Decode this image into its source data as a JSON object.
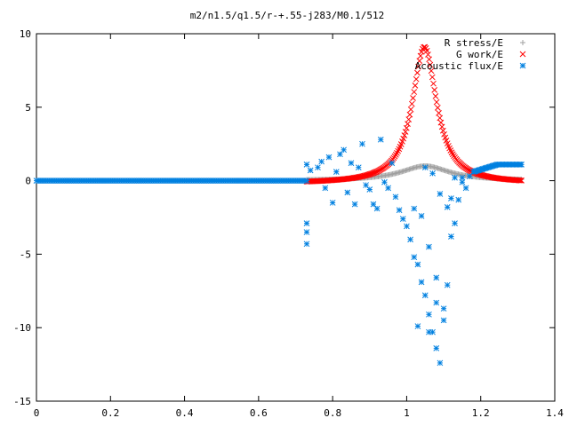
{
  "chart_data": {
    "type": "scatter",
    "title": "m2/n1.5/q1.5/r-+.55-j283/M0.1/512",
    "xlabel": "",
    "ylabel": "",
    "xlim": [
      0,
      1.4
    ],
    "ylim": [
      -15,
      10
    ],
    "x_ticks": [
      "0",
      "0.2",
      "0.4",
      "0.6",
      "0.8",
      "1",
      "1.2",
      "1.4"
    ],
    "y_ticks": [
      "10",
      "5",
      "0",
      "-5",
      "-10",
      "-15"
    ],
    "grid": false,
    "legend_position": "top-right",
    "series": [
      {
        "name": "R stress/E",
        "marker": "plus",
        "color": "#a0a0a0",
        "x_range": [
          0.73,
          1.31
        ],
        "peak_x": 1.05,
        "peak_y": 1.0,
        "width": 0.08,
        "x": [
          0.73,
          0.76,
          0.79,
          0.82,
          0.85,
          0.88,
          0.91,
          0.94,
          0.97,
          1.0,
          1.02,
          1.04,
          1.05,
          1.06,
          1.08,
          1.1,
          1.13,
          1.16,
          1.19,
          1.22,
          1.25,
          1.28,
          1.31
        ],
        "y": [
          0.05,
          0.06,
          0.08,
          0.1,
          0.12,
          0.15,
          0.2,
          0.3,
          0.45,
          0.7,
          0.85,
          0.97,
          1.0,
          0.95,
          0.8,
          0.6,
          0.35,
          0.2,
          0.12,
          0.08,
          0.05,
          0.04,
          0.03
        ]
      },
      {
        "name": "G work/E",
        "marker": "cross",
        "color": "#ff0000",
        "x_range": [
          0.73,
          1.31
        ],
        "peak_x": 1.048,
        "peak_y": 9.3,
        "width": 0.04,
        "x": [
          0.73,
          0.78,
          0.83,
          0.88,
          0.92,
          0.96,
          0.99,
          1.01,
          1.03,
          1.04,
          1.048,
          1.06,
          1.07,
          1.09,
          1.11,
          1.14,
          1.18,
          1.22,
          1.26,
          1.31
        ],
        "y": [
          -0.2,
          0.0,
          0.2,
          0.5,
          0.9,
          1.7,
          3.0,
          4.8,
          7.5,
          8.8,
          9.3,
          8.6,
          7.4,
          4.6,
          2.6,
          1.0,
          0.3,
          0.0,
          -0.1,
          -0.1
        ]
      },
      {
        "name": "Acoustic flux/E",
        "marker": "star",
        "color": "#0080e0",
        "left_baseline": {
          "x_range": [
            0,
            0.73
          ],
          "y": 0.0
        },
        "right_tail": {
          "x_range": [
            1.18,
            1.31
          ],
          "y_start": 0.6,
          "y_end": 1.1
        },
        "scatter": [
          [
            0.73,
            1.1
          ],
          [
            0.73,
            -2.9
          ],
          [
            0.73,
            -3.5
          ],
          [
            0.73,
            -4.3
          ],
          [
            0.74,
            0.7
          ],
          [
            0.76,
            0.9
          ],
          [
            0.77,
            1.3
          ],
          [
            0.78,
            -0.5
          ],
          [
            0.79,
            1.6
          ],
          [
            0.8,
            -1.5
          ],
          [
            0.81,
            0.6
          ],
          [
            0.82,
            1.8
          ],
          [
            0.83,
            2.1
          ],
          [
            0.84,
            -0.8
          ],
          [
            0.85,
            1.2
          ],
          [
            0.86,
            -1.6
          ],
          [
            0.87,
            0.9
          ],
          [
            0.88,
            2.5
          ],
          [
            0.89,
            -0.3
          ],
          [
            0.9,
            -0.6
          ],
          [
            0.91,
            -1.6
          ],
          [
            0.92,
            -1.9
          ],
          [
            0.93,
            2.8
          ],
          [
            0.94,
            -0.1
          ],
          [
            0.95,
            -0.5
          ],
          [
            0.96,
            1.2
          ],
          [
            0.97,
            -1.1
          ],
          [
            0.98,
            -2.0
          ],
          [
            0.99,
            -2.6
          ],
          [
            1.0,
            -3.1
          ],
          [
            1.01,
            -4.0
          ],
          [
            1.02,
            -5.2
          ],
          [
            1.03,
            -5.7
          ],
          [
            1.04,
            -6.9
          ],
          [
            1.05,
            -7.8
          ],
          [
            1.06,
            -9.1
          ],
          [
            1.07,
            -10.3
          ],
          [
            1.08,
            -11.4
          ],
          [
            1.09,
            -12.4
          ],
          [
            1.1,
            -8.7
          ],
          [
            1.11,
            -7.1
          ],
          [
            1.12,
            -3.8
          ],
          [
            1.13,
            -2.9
          ],
          [
            1.14,
            -1.3
          ],
          [
            1.15,
            0.2
          ],
          [
            1.16,
            -0.5
          ],
          [
            1.17,
            0.3
          ],
          [
            1.02,
            -1.9
          ],
          [
            1.04,
            -2.4
          ],
          [
            1.06,
            -4.5
          ],
          [
            1.08,
            -6.6
          ],
          [
            1.05,
            0.9
          ],
          [
            1.07,
            0.5
          ],
          [
            1.09,
            -0.9
          ],
          [
            1.11,
            -1.8
          ],
          [
            1.12,
            -1.2
          ],
          [
            1.03,
            -9.9
          ],
          [
            1.06,
            -10.3
          ],
          [
            1.08,
            -8.3
          ],
          [
            1.1,
            -9.5
          ],
          [
            1.13,
            0.2
          ],
          [
            1.15,
            -0.1
          ]
        ]
      }
    ]
  }
}
